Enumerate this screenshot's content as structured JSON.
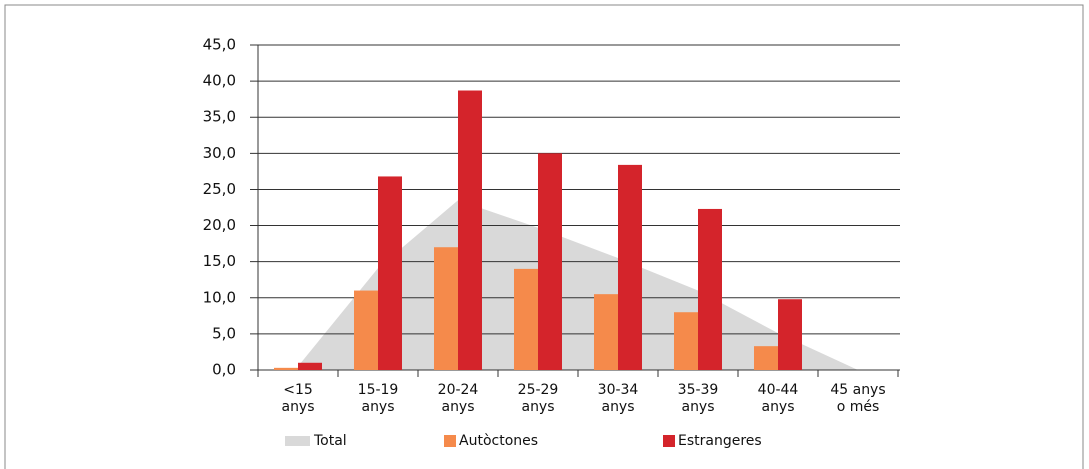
{
  "chart_data": {
    "type": "bar",
    "categories": [
      [
        "<15",
        "anys"
      ],
      [
        "15-19",
        "anys"
      ],
      [
        "20-24",
        "anys"
      ],
      [
        "25-29",
        "anys"
      ],
      [
        "30-34",
        "anys"
      ],
      [
        "35-39",
        "anys"
      ],
      [
        "40-44",
        "anys"
      ],
      [
        "45 anys",
        "o més"
      ]
    ],
    "series": [
      {
        "name": "Total",
        "type": "area",
        "color": "#d9d9d9",
        "values": [
          0.5,
          14.1,
          23.5,
          19.7,
          15.5,
          11,
          5.1,
          0
        ]
      },
      {
        "name": "Autòctones",
        "type": "bar",
        "color": "#f58a4b",
        "values": [
          0.3,
          11,
          17,
          14,
          10.5,
          8,
          3.3,
          null
        ]
      },
      {
        "name": "Estrangeres",
        "type": "bar",
        "color": "#d4242b",
        "values": [
          1,
          26.8,
          38.7,
          30,
          28.4,
          22.3,
          9.8,
          null
        ]
      }
    ],
    "ylim": [
      0,
      45
    ],
    "yticks": [
      {
        "value": 0,
        "label": "0,0"
      },
      {
        "value": 5,
        "label": "5,0"
      },
      {
        "value": 10,
        "label": "10,0"
      },
      {
        "value": 15,
        "label": "15,0"
      },
      {
        "value": 20,
        "label": "20,0"
      },
      {
        "value": 25,
        "label": "25,0"
      },
      {
        "value": 30,
        "label": "30,0"
      },
      {
        "value": 35,
        "label": "35,0"
      },
      {
        "value": 40,
        "label": "40,0"
      },
      {
        "value": 45,
        "label": "45,0"
      }
    ],
    "grid": true
  }
}
